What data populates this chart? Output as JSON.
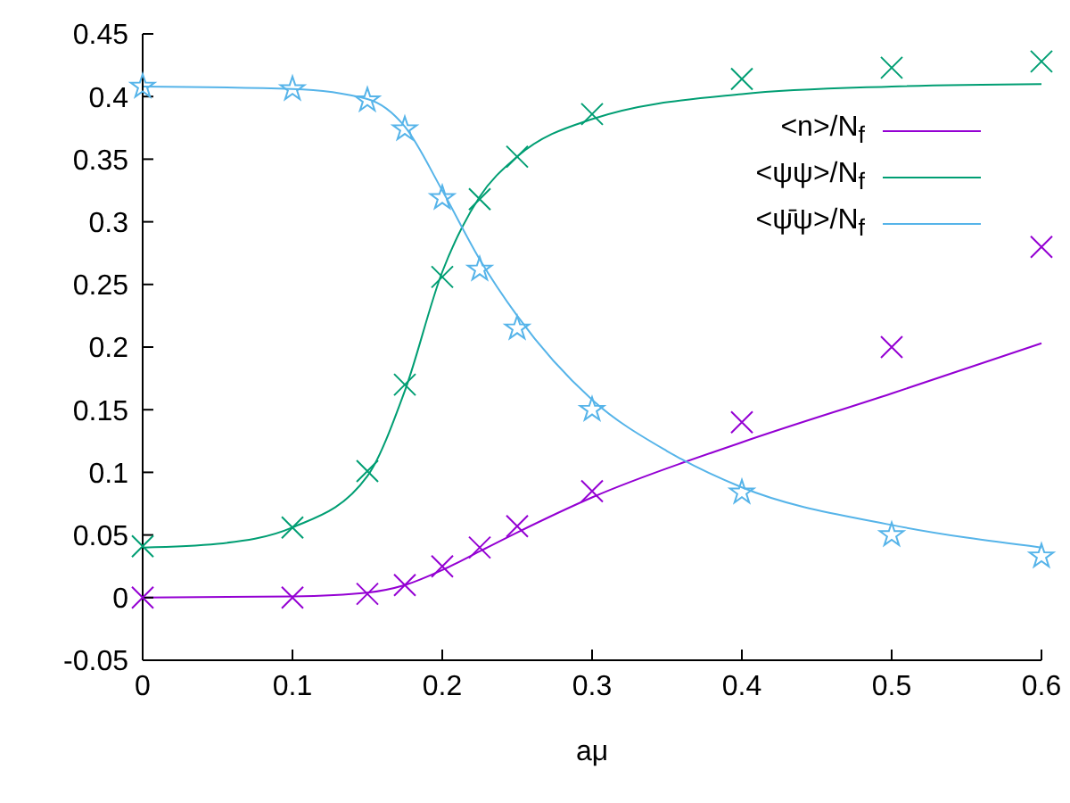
{
  "chart_data": {
    "type": "line",
    "xlabel": "aμ",
    "xlim": [
      0,
      0.6
    ],
    "xticks": [
      0,
      0.1,
      0.2,
      0.3,
      0.4,
      0.5,
      0.6
    ],
    "ylim": [
      -0.05,
      0.45
    ],
    "yticks": [
      -0.05,
      0,
      0.05,
      0.1,
      0.15,
      0.2,
      0.25,
      0.3,
      0.35,
      0.4,
      0.45
    ],
    "grid": false,
    "legend": "top right",
    "series": [
      {
        "type": "scatter",
        "marker": "cross",
        "color": "#9400d3",
        "x": [
          0,
          0.1,
          0.15,
          0.175,
          0.2,
          0.225,
          0.25,
          0.3,
          0.4,
          0.5,
          0.6
        ],
        "values": [
          0,
          0,
          0.003,
          0.01,
          0.025,
          0.04,
          0.057,
          0.085,
          0.14,
          0.2,
          0.28
        ]
      },
      {
        "type": "scatter",
        "marker": "cross",
        "color": "#009e73",
        "x": [
          0,
          0.1,
          0.15,
          0.175,
          0.2,
          0.225,
          0.25,
          0.3,
          0.4,
          0.5,
          0.6
        ],
        "values": [
          0.041,
          0.056,
          0.101,
          0.17,
          0.256,
          0.318,
          0.352,
          0.386,
          0.414,
          0.423,
          0.428
        ]
      },
      {
        "type": "scatter",
        "marker": "star",
        "color": "#56b4e9",
        "x": [
          0,
          0.1,
          0.15,
          0.175,
          0.2,
          0.225,
          0.25,
          0.3,
          0.4,
          0.5,
          0.6
        ],
        "values": [
          0.408,
          0.406,
          0.397,
          0.374,
          0.319,
          0.262,
          0.215,
          0.15,
          0.084,
          0.05,
          0.033
        ]
      },
      {
        "name": "<n>/N$_{f}$",
        "color": "#9400d3",
        "x": [
          0,
          0.1,
          0.15,
          0.175,
          0.2,
          0.225,
          0.25,
          0.3,
          0.4,
          0.5,
          0.6
        ],
        "values": [
          0,
          0.001,
          0.004,
          0.01,
          0.022,
          0.037,
          0.052,
          0.08,
          0.124,
          0.163,
          0.203
        ]
      },
      {
        "name": "<ψψ>/N$_{f}$",
        "color": "#009e73",
        "x": [
          0,
          0.05,
          0.1,
          0.15,
          0.175,
          0.2,
          0.225,
          0.25,
          0.3,
          0.4,
          0.5,
          0.6
        ],
        "values": [
          0.04,
          0.043,
          0.056,
          0.097,
          0.165,
          0.26,
          0.32,
          0.352,
          0.382,
          0.402,
          0.408,
          0.41
        ]
      },
      {
        "name": "<ψ̄ψ>/N$_{f}$",
        "color": "#56b4e9",
        "x": [
          0,
          0.1,
          0.15,
          0.175,
          0.2,
          0.225,
          0.25,
          0.3,
          0.35,
          0.4,
          0.5,
          0.6
        ],
        "values": [
          0.408,
          0.406,
          0.398,
          0.376,
          0.325,
          0.27,
          0.225,
          0.158,
          0.117,
          0.088,
          0.058,
          0.04
        ]
      }
    ]
  }
}
